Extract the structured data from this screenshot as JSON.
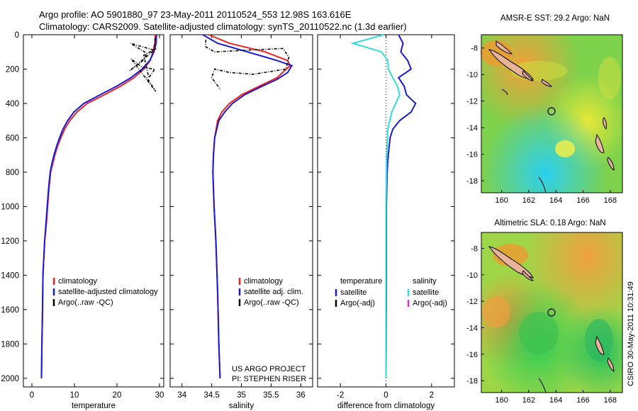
{
  "title": {
    "line1": "Argo profile: AO 5901880_97 23-May-2011 20110524_553 12.98S 163.616E",
    "line2": "Climatology: CARS2009. Satellite-adjusted climatology: synTS_20110522.nc (1.3d earlier)"
  },
  "credit": "CSIRO 30-May-2011 10:31:49",
  "colors": {
    "climatology": "#ee2222",
    "satellite": "#1a1ad6",
    "argo": "#000000",
    "satellite_sal": "#33dddd",
    "argo_adj_sal": "#dd33dd"
  },
  "chart_data": [
    {
      "type": "line",
      "id": "temperature",
      "xlabel": "temperature",
      "ylabel": "",
      "xlim": [
        -2,
        31
      ],
      "ylim": [
        2050,
        0
      ],
      "xticks": [
        0,
        10,
        20,
        30
      ],
      "yticks": [
        0,
        200,
        400,
        600,
        800,
        1000,
        1200,
        1400,
        1600,
        1800,
        2000
      ],
      "legend": [
        "climatology",
        "satellite-adjusted climatology",
        "Argo(..raw -QC)"
      ],
      "series": [
        {
          "name": "climatology",
          "color": "climatology",
          "x": [
            29.0,
            28.9,
            28.5,
            27.8,
            26.3,
            24.0,
            20.8,
            17.0,
            13.0,
            10.6,
            8.9,
            7.7,
            6.8,
            6.0,
            5.4,
            4.9,
            4.4,
            4.0,
            3.7,
            3.4,
            3.0,
            2.8,
            2.6,
            2.5,
            2.35,
            2.25
          ],
          "y": [
            0,
            50,
            100,
            150,
            200,
            250,
            300,
            350,
            400,
            450,
            500,
            550,
            600,
            650,
            700,
            750,
            800,
            900,
            1000,
            1100,
            1200,
            1300,
            1400,
            1600,
            1800,
            2000
          ]
        },
        {
          "name": "satellite-adjusted climatology",
          "color": "satellite",
          "x": [
            29.3,
            29.2,
            28.7,
            27.7,
            25.9,
            23.3,
            19.9,
            16.0,
            12.2,
            9.9,
            8.4,
            7.3,
            6.5,
            5.8,
            5.2,
            4.7,
            4.3,
            3.9,
            3.6,
            3.3,
            3.0,
            2.8,
            2.6,
            2.5,
            2.35,
            2.25
          ],
          "y": [
            0,
            50,
            100,
            150,
            200,
            250,
            300,
            350,
            400,
            450,
            500,
            550,
            600,
            650,
            700,
            750,
            800,
            900,
            1000,
            1100,
            1200,
            1300,
            1400,
            1600,
            1800,
            2000
          ]
        },
        {
          "name": "Argo(..raw -QC)",
          "color": "argo",
          "style": "dashdot",
          "x": [
            29.0,
            28.7,
            23.2,
            27.1,
            26.1,
            23.0,
            29.2,
            26.3,
            27.5,
            28.9,
            25.9,
            23.3,
            29.1,
            26.8
          ],
          "y": [
            20,
            90,
            50,
            110,
            150,
            210,
            80,
            120,
            250,
            200,
            190,
            140,
            330,
            240
          ]
        }
      ]
    },
    {
      "type": "line",
      "id": "salinity",
      "xlabel": "salinity",
      "xlim": [
        33.8,
        36.2
      ],
      "ylim": [
        2050,
        0
      ],
      "xticks": [
        34,
        34.5,
        35,
        35.5,
        36
      ],
      "xticklabels": [
        "34",
        "34.5",
        "35",
        "35.5",
        "36"
      ],
      "legend": [
        "climatology",
        "satellite adj. clim.",
        "Argo(..raw -QC)"
      ],
      "annotation": [
        "US ARGO PROJECT",
        "PI: STEPHEN RISER"
      ],
      "series": [
        {
          "name": "climatology",
          "color": "climatology",
          "x": [
            34.45,
            34.8,
            35.4,
            35.78,
            35.82,
            35.6,
            35.3,
            35.0,
            34.8,
            34.67,
            34.6,
            34.55,
            34.53,
            34.52,
            34.54,
            34.57,
            34.6,
            34.62,
            34.64
          ],
          "y": [
            0,
            50,
            100,
            150,
            180,
            250,
            300,
            350,
            400,
            450,
            500,
            600,
            700,
            800,
            1000,
            1200,
            1500,
            1800,
            2000
          ]
        },
        {
          "name": "satellite adj. clim.",
          "color": "satellite",
          "x": [
            34.35,
            34.6,
            35.1,
            35.6,
            35.85,
            35.78,
            35.6,
            35.35,
            35.05,
            34.85,
            34.72,
            34.62,
            34.55,
            34.53,
            34.52,
            34.54,
            34.57,
            34.6,
            34.62,
            34.64
          ],
          "y": [
            0,
            50,
            100,
            150,
            180,
            220,
            260,
            300,
            350,
            400,
            450,
            500,
            600,
            700,
            800,
            1000,
            1200,
            1500,
            1800,
            2000
          ]
        },
        {
          "name": "Argo(..raw -QC)",
          "color": "argo",
          "style": "dashdot",
          "x": [
            34.4,
            34.4,
            34.55,
            35.1,
            35.7,
            35.8,
            35.75,
            35.2,
            34.8,
            34.55,
            34.5,
            34.65
          ],
          "y": [
            30,
            70,
            100,
            90,
            80,
            130,
            200,
            230,
            220,
            200,
            250,
            320
          ]
        }
      ]
    },
    {
      "type": "line",
      "id": "difference",
      "xlabel": "difference from climatology",
      "xlim": [
        -3,
        3
      ],
      "ylim": [
        2050,
        0
      ],
      "xticks": [
        -2,
        0,
        2
      ],
      "legend_temperature": {
        "title": "temperature",
        "items": [
          "satellite",
          "Argo(-adj)"
        ]
      },
      "legend_salinity": {
        "title": "salinity",
        "items": [
          "satellite",
          "Argo(-adj)"
        ]
      },
      "series": [
        {
          "name": "temperature satellite",
          "color": "satellite",
          "x": [
            0.55,
            0.75,
            0.65,
            0.95,
            1.1,
            0.55,
            0.8,
            0.9,
            1.3,
            1.1,
            0.6,
            0.3,
            0.18,
            0.1,
            0.05,
            0.02,
            0.02,
            0.01,
            0.0
          ],
          "y": [
            0,
            50,
            100,
            150,
            200,
            250,
            300,
            350,
            400,
            450,
            500,
            550,
            600,
            700,
            800,
            1000,
            1400,
            1800,
            2000
          ]
        },
        {
          "name": "salinity satellite",
          "color": "satellite_sal",
          "x": [
            -0.1,
            -1.45,
            -0.2,
            0.08,
            0.1,
            0.3,
            0.5,
            0.6,
            0.25,
            0.08,
            0.03,
            0.0,
            0.0,
            0.0
          ],
          "y": [
            0,
            50,
            100,
            150,
            200,
            250,
            300,
            350,
            450,
            550,
            700,
            1000,
            1500,
            2000
          ]
        }
      ]
    }
  ],
  "maps": [
    {
      "id": "sst",
      "title": "AMSR-E SST: 29.2 Argo: NaN",
      "xticks": [
        160,
        162,
        164,
        166,
        168
      ],
      "yticks": [
        -8,
        -10,
        -12,
        -14,
        -16,
        -18
      ]
    },
    {
      "id": "sla",
      "title": "Altimetric SLA: 0.18 Argo: NaN",
      "xticks": [
        160,
        162,
        164,
        166,
        168
      ],
      "yticks": [
        -8,
        -10,
        -12,
        -14,
        -16,
        -18
      ]
    }
  ]
}
